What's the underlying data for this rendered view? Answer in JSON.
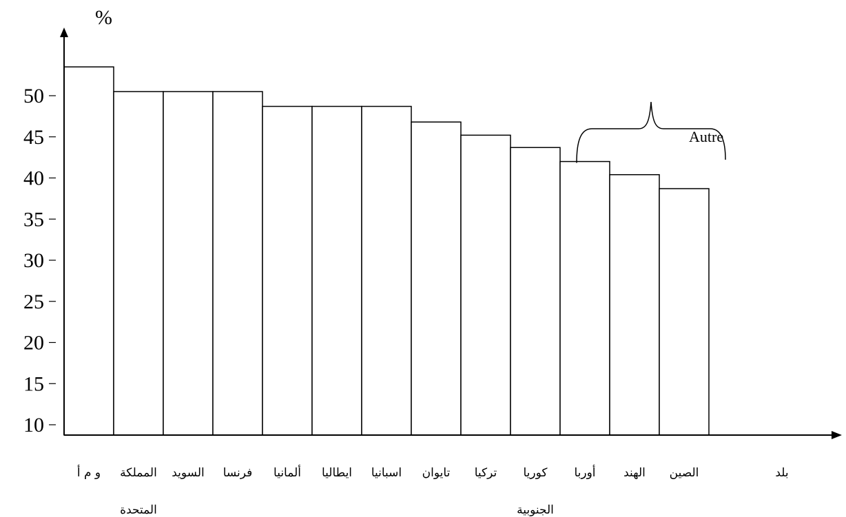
{
  "chart_data": {
    "type": "bar",
    "ylabel": "%",
    "xlabel": "بلد",
    "y_ticks": [
      10,
      15,
      20,
      25,
      30,
      35,
      40,
      45,
      50
    ],
    "ylim": [
      8,
      56
    ],
    "grid": false,
    "categories": [
      [
        "و م أ"
      ],
      [
        "المملكة",
        "المتحدة"
      ],
      [
        "السويد"
      ],
      [
        "فرنسا"
      ],
      [
        "ألمانيا"
      ],
      [
        "ايطاليا"
      ],
      [
        "اسبانيا"
      ],
      [
        "تايوان"
      ],
      [
        "تركيا"
      ],
      [
        "كوريا",
        "الجنوبية"
      ],
      [
        "أوربا"
      ],
      [
        "الهند"
      ],
      [
        "الصين"
      ]
    ],
    "values": [
      53.5,
      50.5,
      50.5,
      50.5,
      48.7,
      48.7,
      48.7,
      46.8,
      45.2,
      43.7,
      42,
      40.4,
      38.7
    ],
    "annotation": {
      "text": "Autre",
      "from_index": 10,
      "to_index": 12
    }
  }
}
